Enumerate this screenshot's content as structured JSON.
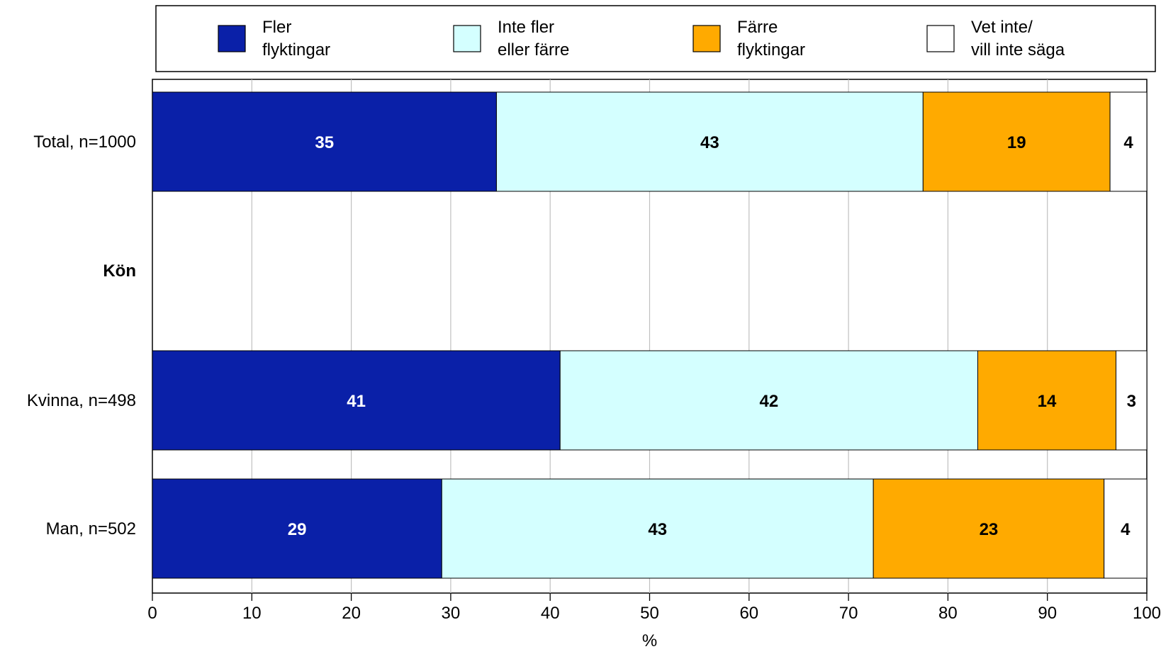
{
  "chart_data": {
    "type": "bar",
    "orientation": "horizontal",
    "stacked": true,
    "xlabel": "%",
    "xlim": [
      0,
      100
    ],
    "xticks": [
      "0",
      "10",
      "20",
      "30",
      "40",
      "50",
      "60",
      "70",
      "80",
      "90",
      "100"
    ],
    "grid": true,
    "legend_position": "top",
    "categories": [
      "Total, n=1000",
      "Kön",
      "Kvinna, n=498",
      "Man, n=502"
    ],
    "group_headers": [
      "Kön"
    ],
    "series": [
      {
        "name": "Fler flyktingar",
        "legend_lines": [
          "Fler",
          "flyktingar"
        ],
        "color": "#0A20A8",
        "label_color": "#FFFFFF",
        "values": [
          34.6,
          null,
          41.0,
          29.1
        ],
        "labels": [
          "35",
          "",
          "41",
          "29"
        ]
      },
      {
        "name": "Inte fler eller färre",
        "legend_lines": [
          "Inte fler",
          "eller färre"
        ],
        "color": "#D4FFFF",
        "label_color": "#000000",
        "values": [
          42.9,
          null,
          42.0,
          43.4
        ],
        "labels": [
          "43",
          "",
          "42",
          "43"
        ]
      },
      {
        "name": "Färre flyktingar",
        "legend_lines": [
          "Färre",
          "flyktingar"
        ],
        "color": "#FFAA00",
        "label_color": "#000000",
        "values": [
          18.8,
          null,
          13.9,
          23.2
        ],
        "labels": [
          "19",
          "",
          "14",
          "23"
        ]
      },
      {
        "name": "Vet inte/ vill inte säga",
        "legend_lines": [
          "Vet inte/",
          "vill inte säga"
        ],
        "color": "#FFFFFF",
        "label_color": "#000000",
        "values": [
          3.7,
          null,
          3.1,
          4.3
        ],
        "labels": [
          "4",
          "",
          "3",
          "4"
        ]
      }
    ]
  }
}
